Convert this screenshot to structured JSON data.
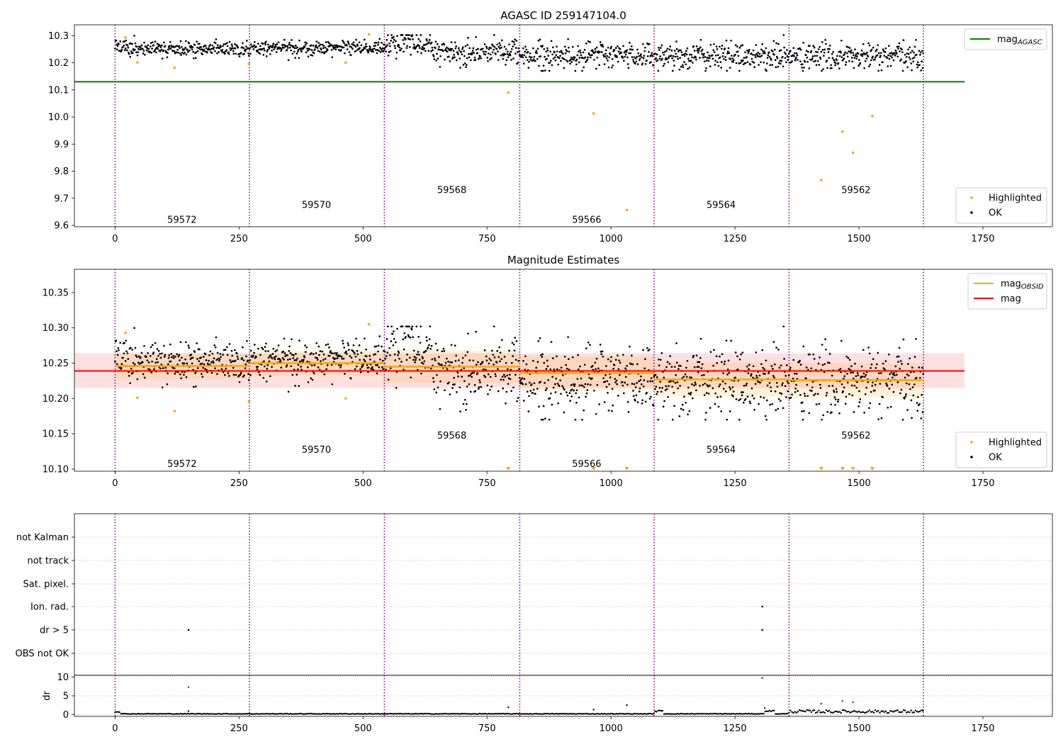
{
  "chart_data": [
    {
      "type": "scatter",
      "id": "top",
      "title": "AGASC ID 259147104.0",
      "xlim": [
        -82,
        1890
      ],
      "ylim": [
        9.595,
        10.34
      ],
      "xticks": [
        "0",
        "250",
        "500",
        "750",
        "1000",
        "1250",
        "1500",
        "1750"
      ],
      "yticks": [
        "9.6",
        "9.7",
        "9.8",
        "9.9",
        "10.0",
        "10.1",
        "10.2",
        "10.3"
      ],
      "vlines": [
        0,
        271,
        543,
        816,
        1087,
        1359,
        1630
      ],
      "hlines": [
        {
          "name": "mag",
          "sub": "AGASC",
          "y": 10.13,
          "x": [
            -82,
            1713
          ],
          "color": "#008000"
        }
      ],
      "segment_labels": [
        {
          "text": "59572",
          "x": 135,
          "y": 9.62
        },
        {
          "text": "59570",
          "x": 406,
          "y": 9.675
        },
        {
          "text": "59568",
          "x": 679,
          "y": 9.73
        },
        {
          "text": "59566",
          "x": 951,
          "y": 9.62
        },
        {
          "text": "59564",
          "x": 1222,
          "y": 9.675
        },
        {
          "text": "59562",
          "x": 1494,
          "y": 9.73
        }
      ],
      "highlighted": {
        "name": "Highlighted",
        "color": "#ffa500",
        "x": [
          21,
          45,
          120,
          270,
          465,
          512,
          793,
          965,
          1032,
          1424,
          1467,
          1488,
          1527
        ],
        "y": [
          10.293,
          10.201,
          10.182,
          10.195,
          10.2,
          10.305,
          10.09,
          10.013,
          9.657,
          9.767,
          9.946,
          9.868,
          10.003
        ]
      },
      "legend": [
        {
          "label": "mag",
          "sub": "AGASC",
          "kind": "line",
          "color": "#008000"
        },
        {
          "label": "Highlighted",
          "kind": "point",
          "color": "#ffa500"
        },
        {
          "label": "OK",
          "kind": "point",
          "color": "#000000"
        }
      ]
    },
    {
      "type": "scatter",
      "id": "middle",
      "title": "Magnitude Estimates",
      "xlim": [
        -82,
        1890
      ],
      "ylim": [
        10.097,
        10.383
      ],
      "xticks": [
        "0",
        "250",
        "500",
        "750",
        "1000",
        "1250",
        "1500",
        "1750"
      ],
      "yticks": [
        "10.10",
        "10.15",
        "10.20",
        "10.25",
        "10.30",
        "10.35"
      ],
      "vlines": [
        0,
        271,
        543,
        816,
        1087,
        1359,
        1630
      ],
      "segment_labels": [
        {
          "text": "59572",
          "x": 135,
          "y": 10.107
        },
        {
          "text": "59570",
          "x": 406,
          "y": 10.127
        },
        {
          "text": "59568",
          "x": 679,
          "y": 10.147
        },
        {
          "text": "59566",
          "x": 951,
          "y": 10.107
        },
        {
          "text": "59564",
          "x": 1222,
          "y": 10.127
        },
        {
          "text": "59562",
          "x": 1494,
          "y": 10.147
        }
      ],
      "mag": {
        "name": "mag",
        "y": 10.239,
        "band": [
          10.215,
          10.264
        ],
        "x": [
          -82,
          1713
        ],
        "color": "#ff0000"
      },
      "mag_obsid": {
        "name": "mag",
        "sub": "OBSID",
        "color": "#ffa500",
        "segments": [
          {
            "x": [
              0,
              271
            ],
            "y": 10.246,
            "band": [
              10.228,
              10.264
            ]
          },
          {
            "x": [
              271,
              543
            ],
            "y": 10.25,
            "band": [
              10.232,
              10.268
            ]
          },
          {
            "x": [
              543,
              816
            ],
            "y": 10.245,
            "band": [
              10.222,
              10.268
            ]
          },
          {
            "x": [
              816,
              1087
            ],
            "y": 10.236,
            "band": [
              10.212,
              10.26
            ]
          },
          {
            "x": [
              1087,
              1359
            ],
            "y": 10.227,
            "band": [
              10.203,
              10.251
            ]
          },
          {
            "x": [
              1359,
              1630
            ],
            "y": 10.226,
            "band": [
              10.202,
              10.25
            ]
          }
        ]
      },
      "highlighted": {
        "name": "Highlighted",
        "color": "#ffa500",
        "x": [
          21,
          45,
          120,
          270,
          465,
          512
        ],
        "y": [
          10.293,
          10.201,
          10.182,
          10.195,
          10.2,
          10.305
        ]
      },
      "clipped_markers": {
        "x": [
          793,
          965,
          1032,
          1424,
          1467,
          1488,
          1527
        ],
        "color": "#ffa500"
      },
      "legend": [
        {
          "label": "mag",
          "sub": "OBSID",
          "kind": "line",
          "color": "#ffa500"
        },
        {
          "label": "mag",
          "kind": "line",
          "color": "#ff0000"
        },
        {
          "label": "Highlighted",
          "kind": "point",
          "color": "#ffa500"
        },
        {
          "label": "OK",
          "kind": "point",
          "color": "#000000"
        }
      ]
    },
    {
      "type": "scatter",
      "id": "flags",
      "xlim": [
        -82,
        1890
      ],
      "categories": [
        "not Kalman",
        "not track",
        "Sat. pixel.",
        "Ion. rad.",
        "dr > 5",
        "OBS not OK"
      ],
      "vlines": [
        0,
        271,
        543,
        816,
        1087,
        1359,
        1630
      ],
      "points": [
        {
          "x": 148,
          "category": "dr > 5"
        },
        {
          "x": 1305,
          "category": "Ion. rad."
        },
        {
          "x": 1305,
          "category": "dr > 5"
        }
      ]
    },
    {
      "type": "scatter",
      "id": "dr",
      "ylabel": "dr",
      "xlim": [
        -82,
        1890
      ],
      "ylim": [
        -0.5,
        10.5
      ],
      "xticks": [
        "0",
        "250",
        "500",
        "750",
        "1000",
        "1250",
        "1500",
        "1750"
      ],
      "yticks": [
        "0",
        "5",
        "10"
      ],
      "vlines": [
        0,
        271,
        543,
        816,
        1087,
        1359,
        1630
      ],
      "red_points": {
        "x": [
          148,
          1305,
          1424,
          1467,
          1488
        ],
        "y": [
          7.3,
          9.8,
          2.9,
          3.6,
          3.3
        ],
        "color": "#d62728"
      },
      "outliers": {
        "x": [
          148,
          793,
          965,
          1032,
          1310
        ],
        "y": [
          0.9,
          1.9,
          1.3,
          2.5,
          1.7
        ]
      }
    }
  ]
}
